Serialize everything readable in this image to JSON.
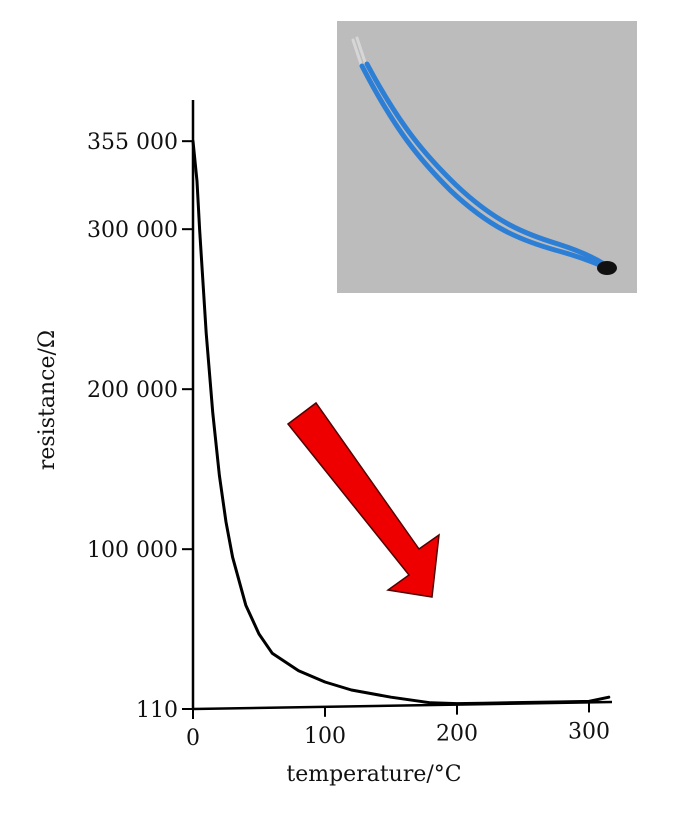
{
  "chart_data": {
    "type": "line",
    "title": "",
    "xlabel": "temperature/°C",
    "ylabel": "resistance/Ω",
    "xlim": [
      0,
      320
    ],
    "y_ticks": [
      {
        "label": "110",
        "value": 110
      },
      {
        "label": "100 000",
        "value": 100000
      },
      {
        "label": "200 000",
        "value": 200000
      },
      {
        "label": "300 000",
        "value": 300000
      },
      {
        "label": "355 000",
        "value": 355000
      }
    ],
    "x_ticks": [
      {
        "label": "0",
        "value": 0
      },
      {
        "label": "100",
        "value": 100
      },
      {
        "label": "200",
        "value": 200
      },
      {
        "label": "300",
        "value": 300
      }
    ],
    "grid": false,
    "series": [
      {
        "color": "#000000",
        "x": [
          0,
          3,
          5,
          10,
          15,
          20,
          25,
          30,
          40,
          50,
          60,
          80,
          100,
          120,
          150,
          180,
          200,
          220,
          250,
          280,
          300,
          315
        ],
        "y": [
          355000,
          330000,
          300000,
          235000,
          185000,
          146000,
          117000,
          95000,
          65000,
          47000,
          35000,
          24000,
          17000,
          12000,
          7500,
          4000,
          2500,
          1800,
          1500,
          2500,
          4500,
          7500
        ]
      }
    ]
  },
  "annotations": {
    "arrow_color": "#ee0000",
    "photo": "thermistor-photo",
    "photo_background": "#bcbcbc",
    "wire_color": "#2d7fd6",
    "bead_color": "#111111"
  }
}
